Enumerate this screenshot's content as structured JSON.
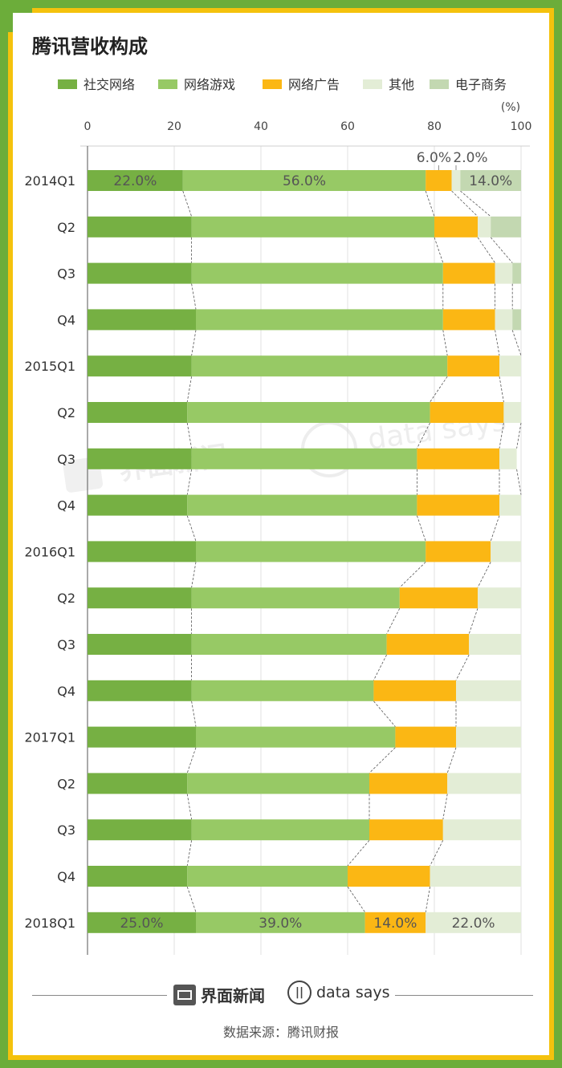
{
  "title": "腾讯营收构成",
  "source": "数据来源：腾讯财报",
  "brand": {
    "name": "界面新闻",
    "data_says": "data says"
  },
  "watermark": {
    "left": "界面新闻",
    "right": "data says"
  },
  "colors": {
    "border_outer": "#6cad3a",
    "border_inner": "#f4c20d",
    "social": "#76b043",
    "games": "#97c965",
    "ads": "#fbb714",
    "other": "#e3edd6",
    "ecommerce": "#c3d8b1"
  },
  "chart_data": {
    "type": "bar",
    "orientation": "horizontal",
    "stacked": true,
    "unit_label": "(%)",
    "xlim": [
      0,
      100
    ],
    "x_ticks": [
      "0",
      "20",
      "40",
      "60",
      "80",
      "100"
    ],
    "legend_placement": "top",
    "categories": [
      "2014Q1",
      "Q2",
      "Q3",
      "Q4",
      "2015Q1",
      "Q2",
      "Q3",
      "Q4",
      "2016Q1",
      "Q2",
      "Q3",
      "Q4",
      "2017Q1",
      "Q2",
      "Q3",
      "Q4",
      "2018Q1"
    ],
    "series": [
      {
        "name": "社交网络",
        "color": "#76b043",
        "values": [
          22,
          24,
          24,
          25,
          24,
          23,
          24,
          23,
          25,
          24,
          24,
          24,
          25,
          23,
          24,
          23,
          25
        ]
      },
      {
        "name": "网络游戏",
        "color": "#97c965",
        "values": [
          56,
          56,
          58,
          57,
          59,
          56,
          52,
          53,
          53,
          48,
          45,
          42,
          46,
          42,
          41,
          37,
          39
        ]
      },
      {
        "name": "网络广告",
        "color": "#fbb714",
        "values": [
          6,
          10,
          12,
          12,
          12,
          17,
          19,
          19,
          15,
          18,
          19,
          19,
          14,
          18,
          17,
          19,
          14
        ]
      },
      {
        "name": "其他",
        "color": "#e3edd6",
        "values": [
          2,
          3,
          4,
          4,
          5,
          4,
          4,
          5,
          7,
          10,
          12,
          15,
          15,
          17,
          18,
          21,
          22
        ]
      },
      {
        "name": "电子商务",
        "color": "#c3d8b1",
        "values": [
          14,
          7,
          2,
          2,
          0,
          0,
          0,
          0,
          0,
          0,
          0,
          0,
          0,
          0,
          0,
          0,
          0
        ]
      }
    ],
    "data_labels": [
      {
        "category_index": 0,
        "series_index": 0,
        "text": "22.0%"
      },
      {
        "category_index": 0,
        "series_index": 1,
        "text": "56.0%"
      },
      {
        "category_index": 0,
        "series_index": 2,
        "text": "6.0%",
        "position": "above"
      },
      {
        "category_index": 0,
        "series_index": 3,
        "text": "2.0%",
        "position": "above"
      },
      {
        "category_index": 0,
        "series_index": 4,
        "text": "14.0%"
      },
      {
        "category_index": 16,
        "series_index": 0,
        "text": "25.0%"
      },
      {
        "category_index": 16,
        "series_index": 1,
        "text": "39.0%"
      },
      {
        "category_index": 16,
        "series_index": 2,
        "text": "14.0%"
      },
      {
        "category_index": 16,
        "series_index": 3,
        "text": "22.0%"
      }
    ]
  }
}
